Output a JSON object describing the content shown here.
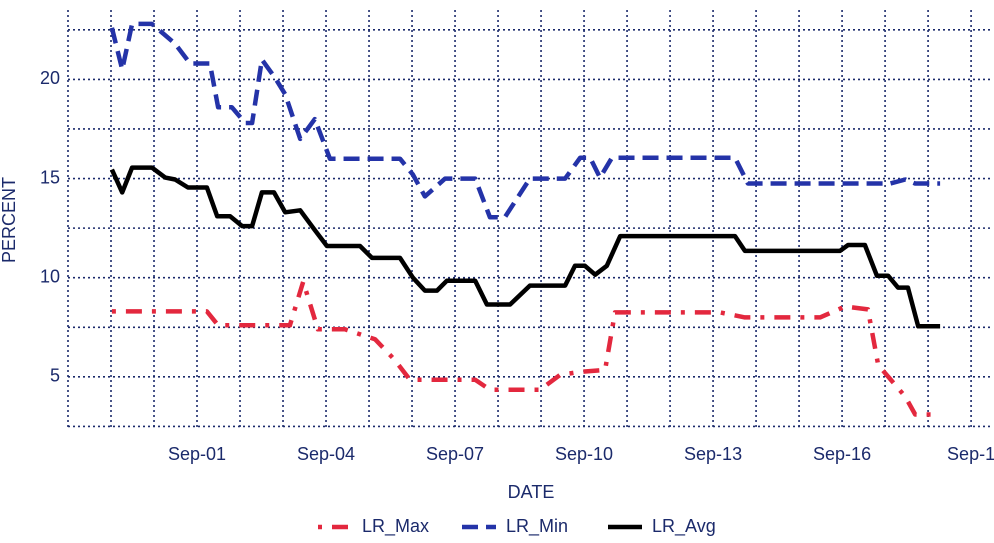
{
  "chart_data": {
    "type": "line",
    "xlabel": "DATE",
    "ylabel": "PERCENT",
    "xlim": [
      -2,
      19.44
    ],
    "ylim": [
      2.32,
      23.5
    ],
    "xticks": [
      {
        "value": 1,
        "label": "Sep-01"
      },
      {
        "value": 4,
        "label": "Sep-04"
      },
      {
        "value": 7,
        "label": "Sep-07"
      },
      {
        "value": 10,
        "label": "Sep-10"
      },
      {
        "value": 13,
        "label": "Sep-13"
      },
      {
        "value": 16,
        "label": "Sep-16"
      },
      {
        "value": 19,
        "label": "Sep-1"
      }
    ],
    "xminor": [
      -2,
      -1,
      0,
      2,
      3,
      5,
      6,
      8,
      9,
      11,
      12,
      14,
      15,
      17,
      18
    ],
    "yticks": [
      5,
      10,
      15,
      20
    ],
    "yminor": [
      2.5,
      7.5,
      12.5,
      17.5,
      22.5
    ],
    "grid": true,
    "legend": "bottom",
    "series": [
      {
        "name": "LR_Max",
        "color": "#e3283e",
        "linestyle": "dashdot",
        "x": [
          -0.98,
          0.84,
          1.23,
          1.49,
          3.16,
          3.47,
          3.81,
          4.44,
          5.14,
          5.6,
          5.95,
          7.47,
          7.81,
          8.98,
          9.44,
          9.91,
          10.49,
          10.72,
          13.16,
          13.74,
          15.49,
          16.07,
          16.6,
          16.84,
          17.47,
          17.7,
          18.16
        ],
        "values": [
          8.3,
          8.3,
          8.3,
          7.6,
          7.6,
          9.8,
          7.4,
          7.4,
          6.9,
          5.85,
          4.85,
          4.85,
          4.35,
          4.35,
          5.1,
          5.25,
          5.35,
          8.25,
          8.25,
          8.0,
          8.0,
          8.55,
          8.4,
          5.6,
          4.0,
          3.1,
          3.1
        ]
      },
      {
        "name": "LR_Min",
        "color": "#2433a8",
        "linestyle": "dashed",
        "x": [
          -0.98,
          -0.74,
          -0.51,
          -0.05,
          0.49,
          0.84,
          1.3,
          1.49,
          1.81,
          2.12,
          2.28,
          2.51,
          2.81,
          3.05,
          3.4,
          3.74,
          4.09,
          5.72,
          6.02,
          6.3,
          6.77,
          7.47,
          7.81,
          8.16,
          8.74,
          9.56,
          9.91,
          10.14,
          10.37,
          10.65,
          13.51,
          13.81,
          17.12,
          17.47,
          17.7,
          18.28
        ],
        "values": [
          22.6,
          20.5,
          22.8,
          22.8,
          21.8,
          20.8,
          20.8,
          18.6,
          18.6,
          17.8,
          17.8,
          21.0,
          20.1,
          19.25,
          17.0,
          18.0,
          16.0,
          16.0,
          15.2,
          14.1,
          15.0,
          15.0,
          13.05,
          13.05,
          15.0,
          15.0,
          16.05,
          16.05,
          15.05,
          16.05,
          16.05,
          14.75,
          14.75,
          14.95,
          14.75,
          14.75
        ]
      },
      {
        "name": "LR_Avg",
        "color": "#000000",
        "linestyle": "solid",
        "x": [
          -0.98,
          -0.74,
          -0.51,
          -0.05,
          0.26,
          0.49,
          0.79,
          1.23,
          1.47,
          1.77,
          2.05,
          2.28,
          2.51,
          2.79,
          3.05,
          3.4,
          3.74,
          4.02,
          4.79,
          5.07,
          5.72,
          6.02,
          6.3,
          6.58,
          6.81,
          7.47,
          7.74,
          8.28,
          8.74,
          9.56,
          9.79,
          10.02,
          10.26,
          10.53,
          10.84,
          13.51,
          13.74,
          15.95,
          16.14,
          16.53,
          16.81,
          17.07,
          17.3,
          17.53,
          17.77,
          18.28
        ],
        "values": [
          15.45,
          14.3,
          15.55,
          15.55,
          15.05,
          14.95,
          14.55,
          14.55,
          13.1,
          13.1,
          12.6,
          12.6,
          14.3,
          14.3,
          13.3,
          13.4,
          12.4,
          11.6,
          11.6,
          11.0,
          11.0,
          10.0,
          9.35,
          9.35,
          9.85,
          9.85,
          8.65,
          8.65,
          9.6,
          9.6,
          10.6,
          10.6,
          10.15,
          10.6,
          12.1,
          12.1,
          11.35,
          11.35,
          11.65,
          11.65,
          10.1,
          10.1,
          9.5,
          9.5,
          7.55,
          7.55
        ]
      }
    ]
  }
}
